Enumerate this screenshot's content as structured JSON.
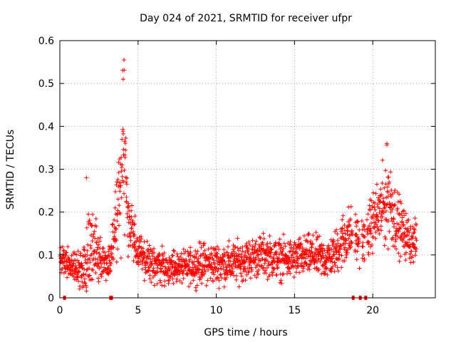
{
  "chart_data": {
    "type": "scatter",
    "title": "Day 024 of 2021, SRMTID for receiver ufpr",
    "xlabel": "GPS time / hours",
    "ylabel": "SRMTID / TECUs",
    "xlim": [
      0,
      24
    ],
    "ylim": [
      0,
      0.6
    ],
    "xticks": [
      0,
      5,
      10,
      15,
      20
    ],
    "xtick_labels": [
      "0",
      "5",
      "10",
      "15",
      "20"
    ],
    "yticks": [
      0,
      0.1,
      0.2,
      0.3,
      0.4,
      0.5,
      0.6
    ],
    "ytick_labels": [
      "0",
      "0.1",
      "0.2",
      "0.3",
      "0.4",
      "0.5",
      "0.6"
    ],
    "grid": true,
    "marker": "+",
    "color": "#ff0000",
    "envelope": {
      "description": "Approximate SRMTID activity envelope read from the plotted points (hour, typical level, upper spread)",
      "x": [
        0.0,
        0.5,
        1.0,
        1.5,
        1.7,
        2.0,
        2.5,
        3.0,
        3.3,
        3.6,
        3.9,
        4.1,
        4.3,
        4.6,
        5.0,
        6.0,
        7.0,
        8.0,
        9.0,
        10.0,
        11.0,
        12.0,
        13.0,
        14.0,
        15.0,
        16.0,
        17.0,
        17.5,
        18.0,
        18.5,
        19.0,
        19.5,
        20.0,
        20.5,
        21.0,
        21.5,
        22.0,
        22.5,
        22.8
      ],
      "level": [
        0.09,
        0.08,
        0.07,
        0.07,
        0.1,
        0.11,
        0.1,
        0.08,
        0.1,
        0.18,
        0.3,
        0.35,
        0.2,
        0.16,
        0.1,
        0.08,
        0.07,
        0.07,
        0.08,
        0.08,
        0.08,
        0.09,
        0.1,
        0.09,
        0.09,
        0.1,
        0.09,
        0.1,
        0.13,
        0.15,
        0.14,
        0.13,
        0.18,
        0.2,
        0.24,
        0.18,
        0.15,
        0.13,
        0.13
      ],
      "spread": [
        0.04,
        0.04,
        0.04,
        0.05,
        0.12,
        0.12,
        0.06,
        0.04,
        0.06,
        0.1,
        0.17,
        0.2,
        0.1,
        0.07,
        0.06,
        0.05,
        0.04,
        0.04,
        0.05,
        0.05,
        0.05,
        0.05,
        0.05,
        0.05,
        0.05,
        0.05,
        0.05,
        0.05,
        0.07,
        0.07,
        0.06,
        0.06,
        0.07,
        0.09,
        0.12,
        0.08,
        0.06,
        0.05,
        0.05
      ]
    },
    "peaks": [
      {
        "x": 1.7,
        "y": 0.28
      },
      {
        "x": 4.1,
        "y": 0.555
      },
      {
        "x": 4.05,
        "y": 0.51
      },
      {
        "x": 20.9,
        "y": 0.36
      }
    ],
    "data_gaps_hours": [
      0.3,
      3.25,
      3.3,
      18.75,
      19.2,
      19.55
    ]
  }
}
